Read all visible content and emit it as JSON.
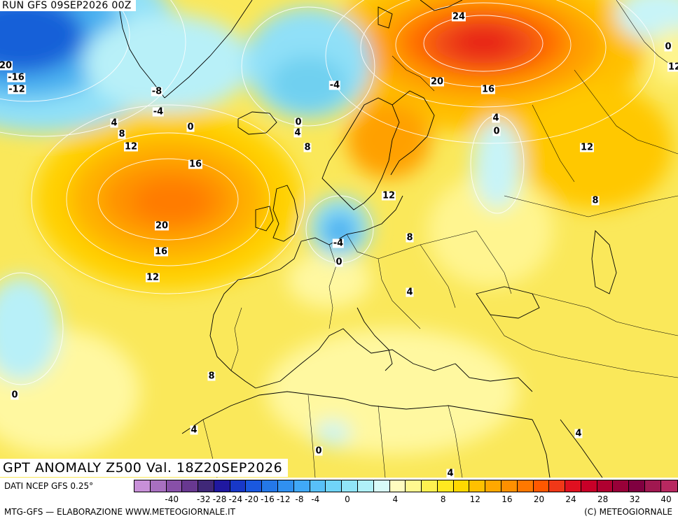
{
  "header": {
    "run_title": "RUN GFS 09SEP2026 00Z"
  },
  "map": {
    "field_title": "GPT ANOMALY Z500 Val. 18Z20SEP2026",
    "region": "Europe / North Atlantic",
    "contour_labels": [
      "24",
      "20",
      "16",
      "4",
      "0",
      "12",
      "8",
      "20",
      "16",
      "12",
      "-4",
      "0",
      "-4",
      "4",
      "8",
      "12",
      "16",
      "20",
      "16",
      "12",
      "-8",
      "-4",
      "0",
      "4",
      "8",
      "12",
      "0",
      "-16",
      "-12",
      "20",
      "0",
      "4",
      "8",
      "12",
      "4",
      "4",
      "0",
      "0",
      "8",
      "4"
    ]
  },
  "footer": {
    "data_source": "DATI NCEP GFS 0.25°",
    "colorbar_ticks": [
      "-40",
      "-32",
      "-28",
      "-24",
      "-20",
      "-16",
      "-12",
      "-8",
      "-4",
      "0",
      "4",
      "8",
      "12",
      "16",
      "20",
      "24",
      "28",
      "32",
      "40"
    ],
    "colorbar_colors": [
      "#c890d8",
      "#a870c0",
      "#8850a8",
      "#683890",
      "#402878",
      "#2018a0",
      "#1838c8",
      "#1a58e0",
      "#2478e8",
      "#3090f0",
      "#40a8f8",
      "#58c0f8",
      "#70d4f8",
      "#90e4f8",
      "#b0f0f8",
      "#d8faf8",
      "#fffcc0",
      "#fff890",
      "#fff050",
      "#ffe820",
      "#ffd800",
      "#ffc000",
      "#ffa800",
      "#ff9000",
      "#ff7800",
      "#ff5800",
      "#f03818",
      "#e01020",
      "#c80028",
      "#b00030",
      "#980038",
      "#800040",
      "#a01850",
      "#b82860"
    ],
    "credit_left": "MTG-GFS — ELABORAZIONE WWW.METEOGIORNALE.IT",
    "credit_right": "(C) METEOGIORNALE"
  }
}
